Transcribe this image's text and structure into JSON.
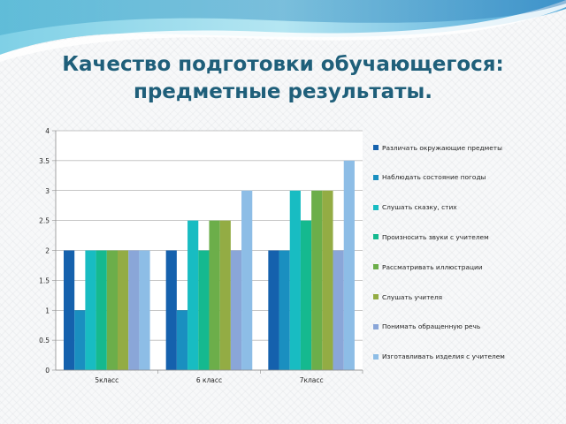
{
  "slide": {
    "title_line1": "Качество подготовки обучающегося:",
    "title_line2": "предметные результаты."
  },
  "colors": {
    "title": "#1f5f7a",
    "series": [
      "#1561ad",
      "#1a8fc0",
      "#18bcc2",
      "#15b98f",
      "#6cae4a",
      "#93ac44",
      "#8aa6d8",
      "#8dbde6"
    ]
  },
  "chart_data": {
    "type": "bar",
    "categories": [
      "5класс",
      "6 класс",
      "7класс"
    ],
    "series": [
      {
        "name": "Различать окружающие предметы",
        "values": [
          2,
          2,
          2
        ]
      },
      {
        "name": "Наблюдать состояние погоды",
        "values": [
          1,
          1,
          2
        ]
      },
      {
        "name": "Слушать сказку, стих",
        "values": [
          2,
          2.5,
          3
        ]
      },
      {
        "name": "Произносить звуки с учителем",
        "values": [
          2,
          2,
          2.5
        ]
      },
      {
        "name": "Рассматривать иллюстрации",
        "values": [
          2,
          2.5,
          3
        ]
      },
      {
        "name": "Слушать учителя",
        "values": [
          2,
          2.5,
          3
        ]
      },
      {
        "name": "Понимать обращенную речь",
        "values": [
          2,
          2,
          2
        ]
      },
      {
        "name": "Изготавливать изделия с учителем",
        "values": [
          2,
          3,
          3.5
        ]
      }
    ],
    "ylim": [
      0,
      4
    ],
    "yticks": [
      "0",
      "0.5",
      "1",
      "1.5",
      "2",
      "2.5",
      "3",
      "3.5",
      "4"
    ],
    "grid": true,
    "legend_position": "right"
  }
}
